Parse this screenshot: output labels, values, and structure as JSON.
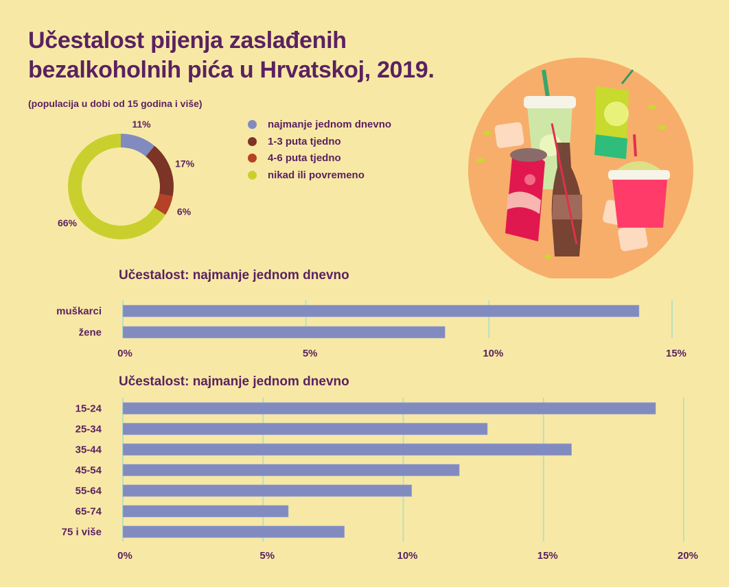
{
  "header": {
    "title_line1": "Učestalost pijenja zaslađenih",
    "title_line2": "bezalkoholnih pića u Hrvatskoj, 2019.",
    "subtitle": "(populacija  u dobi od 15 godina i više)"
  },
  "colors": {
    "background": "#f7e9a5",
    "text": "#5b2160",
    "bar": "#818bbf",
    "grid": "#b7e0c0",
    "illustration_circle": "#f7ae6b"
  },
  "illustration": {
    "icon": "soft-drinks-illustration"
  },
  "chart_data": [
    {
      "type": "pie",
      "variant": "donut",
      "title": "",
      "categories": [
        "najmanje jednom dnevno",
        "1-3 puta tjedno",
        "4-6 puta tjedno",
        "nikad ili povremeno"
      ],
      "values": [
        11,
        17,
        6,
        66
      ],
      "labels": [
        "11%",
        "17%",
        "6%",
        "66%"
      ],
      "colors": [
        "#818bbf",
        "#7b3426",
        "#b54127",
        "#c9d02e"
      ],
      "legend_position": "right"
    },
    {
      "type": "bar",
      "orientation": "horizontal",
      "title": "Učestalost: najmanje jednom dnevno",
      "categories": [
        "muškarci",
        "žene"
      ],
      "values": [
        14.1,
        8.8
      ],
      "xlim": [
        0,
        15
      ],
      "ticks": [
        0,
        5,
        10,
        15
      ],
      "tick_labels": [
        "0%",
        "5%",
        "10%",
        "15%"
      ],
      "grid": true,
      "xlabel": "",
      "ylabel": ""
    },
    {
      "type": "bar",
      "orientation": "horizontal",
      "title": "Učestalost: najmanje jednom dnevno",
      "categories": [
        "15-24",
        "25-34",
        "35-44",
        "45-54",
        "55-64",
        "65-74",
        "75 i više"
      ],
      "values": [
        19.0,
        13.0,
        16.0,
        12.0,
        10.3,
        5.9,
        7.9
      ],
      "xlim": [
        0,
        20
      ],
      "ticks": [
        0,
        5,
        10,
        15,
        20
      ],
      "tick_labels": [
        "0%",
        "5%",
        "10%",
        "15%",
        "20%"
      ],
      "grid": true,
      "xlabel": "",
      "ylabel": ""
    }
  ]
}
